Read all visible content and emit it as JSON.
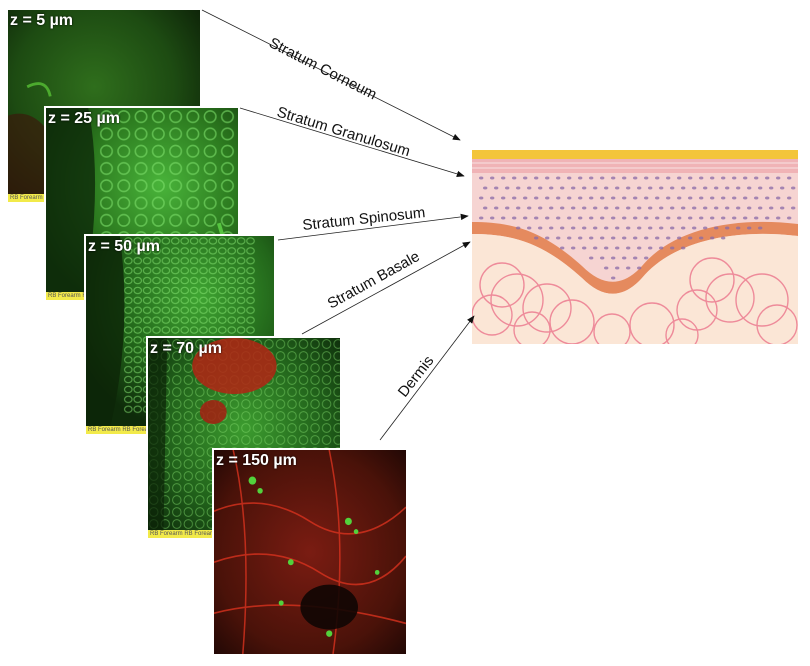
{
  "panels": [
    {
      "label": "z = 5 µm",
      "strip": "RB Forearm F"
    },
    {
      "label": "z = 25 µm",
      "strip": "RB Forearm F"
    },
    {
      "label": "z = 50 µm",
      "strip": "RB Forearm RB Forearm"
    },
    {
      "label": "z = 70 µm",
      "strip": "RB Forearm RB Forearm"
    },
    {
      "label": "z = 150 µm"
    }
  ],
  "layers": {
    "stratum_corneum": "Stratum Corneum",
    "stratum_granulosum": "Stratum Granulosum",
    "stratum_spinosum": "Stratum Spinosum",
    "stratum_basale": "Stratum Basale",
    "dermis": "Dermis"
  },
  "colors": {
    "fluorescence_green": "#3ecf3a",
    "fluorescence_red": "#c8281c",
    "corneum": "#f3c53a",
    "epidermis": "#f6d4d2",
    "basale": "#e58a5e",
    "dermis": "#fbe6d6",
    "collagen": "#ee8b9a",
    "nucleus": "#8a6aa8"
  }
}
